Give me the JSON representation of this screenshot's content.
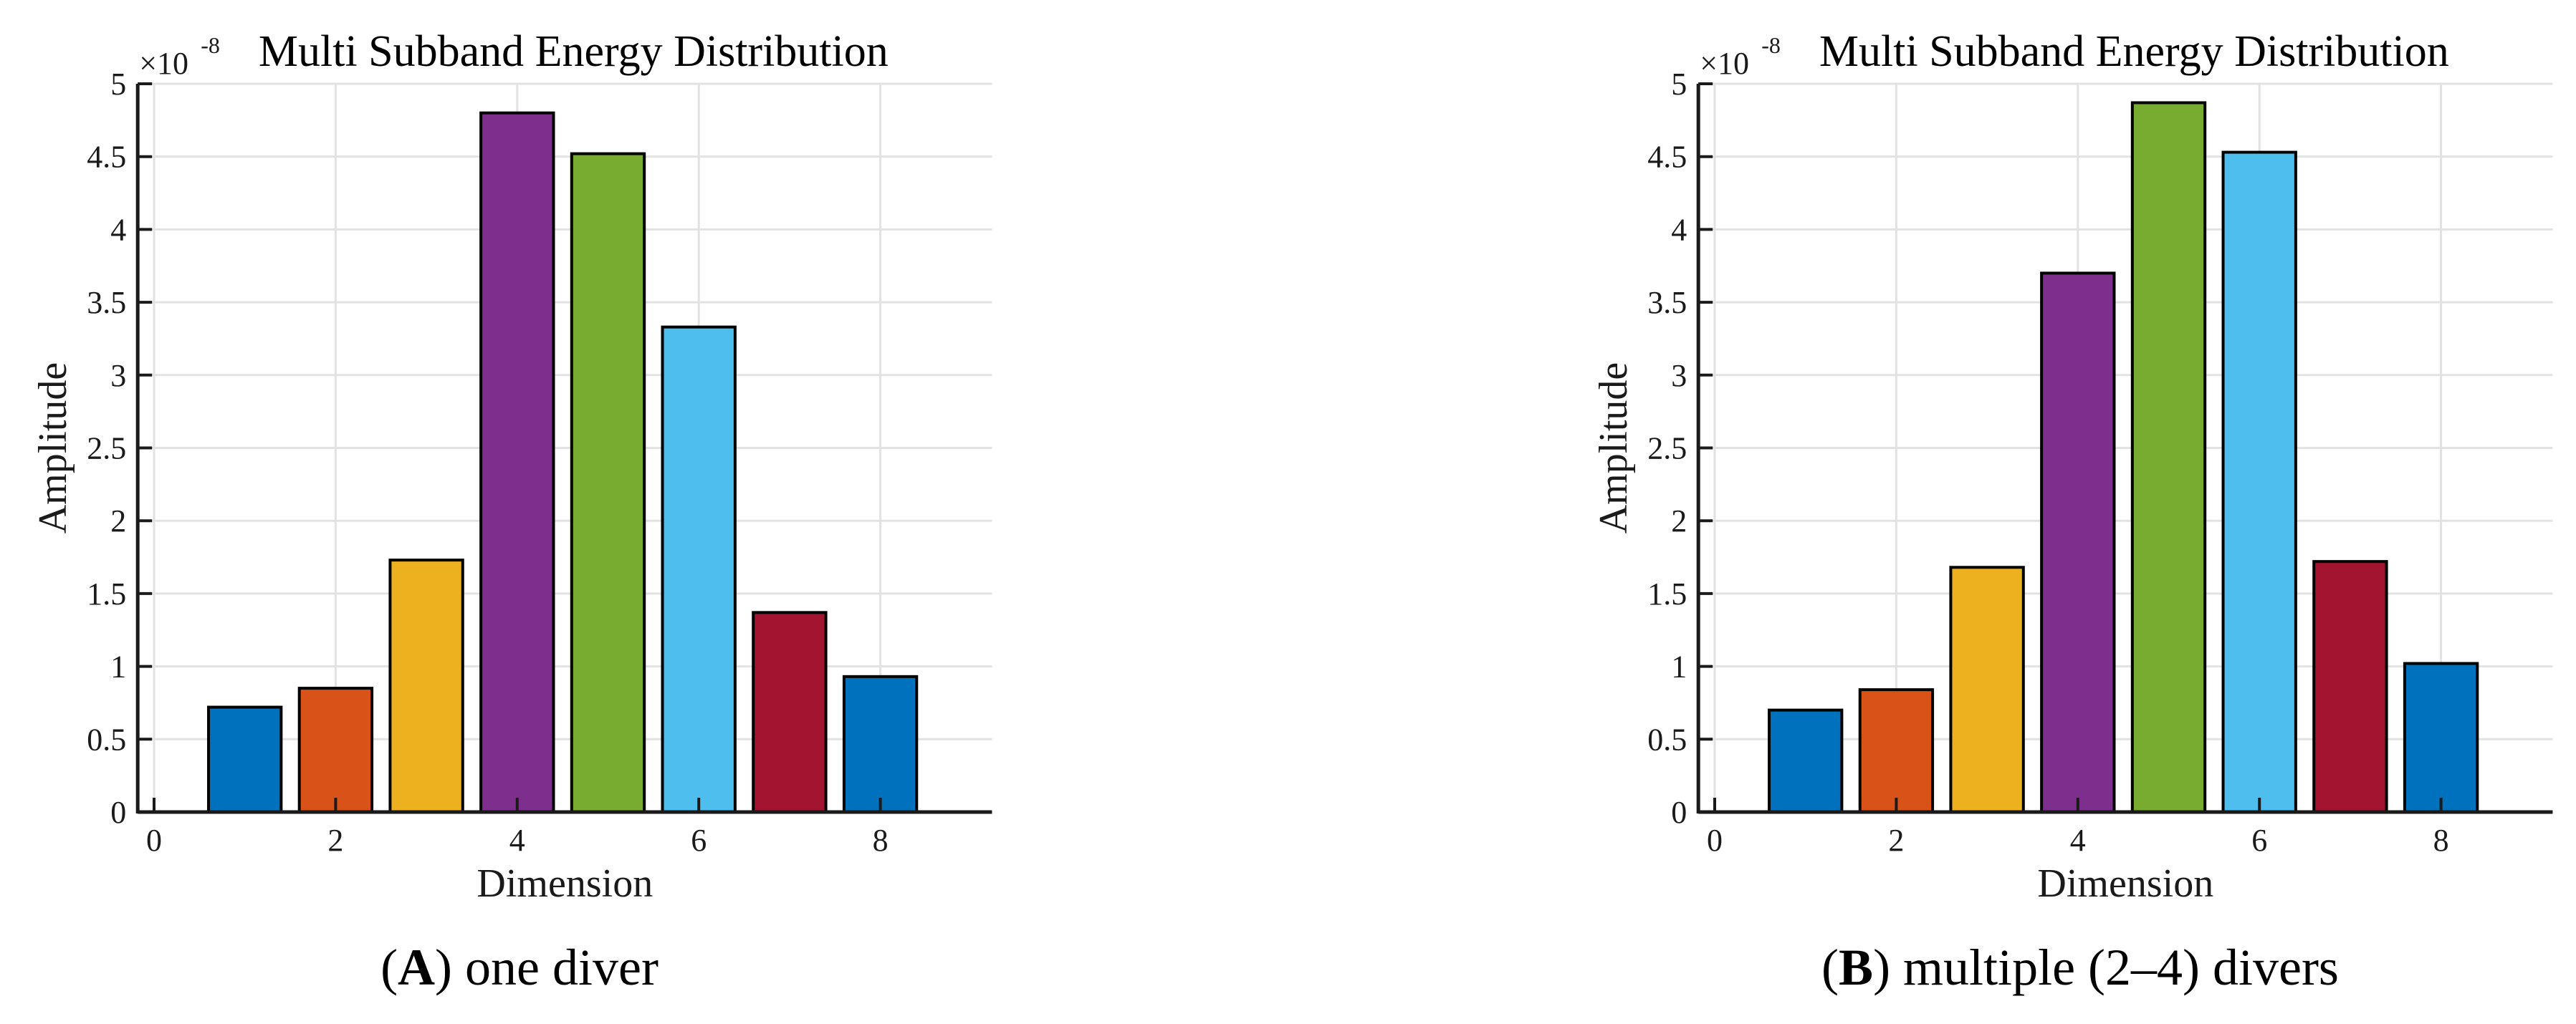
{
  "style": {
    "background": "#FFFFFF",
    "axis_color": "#1A1A1A",
    "grid_color": "#E2E2E2",
    "tick_text_color": "#1A1A1A",
    "title_text_color": "#000000",
    "bar_edge_color": "#000000"
  },
  "chart_data": [
    {
      "type": "bar",
      "panel": "A",
      "title": "Multi Subband Energy Distribution",
      "y_exponent_base": "×10",
      "y_exponent_power": "-8",
      "xlabel": "Dimension",
      "ylabel": "Amplitude",
      "x": [
        1,
        2,
        3,
        4,
        5,
        6,
        7,
        8
      ],
      "values": [
        0.72,
        0.85,
        1.73,
        4.8,
        4.52,
        3.33,
        1.37,
        0.93
      ],
      "value_scale": "1e-8",
      "bar_colors": [
        "#0072BD",
        "#D95319",
        "#EDB120",
        "#7E2F8E",
        "#77AC30",
        "#4DBEEE",
        "#A2142F",
        "#0072BD"
      ],
      "bar_width": 0.8,
      "xticks": [
        0,
        2,
        4,
        6,
        8
      ],
      "yticks": [
        0,
        0.5,
        1,
        1.5,
        2,
        2.5,
        3,
        3.5,
        4,
        4.5,
        5
      ],
      "xlim": [
        -0.18,
        9.23
      ],
      "ylim": [
        0,
        5
      ],
      "grid": true,
      "legend": null,
      "caption": {
        "open": "(",
        "letter": "A",
        "close": ")",
        "text": " one diver"
      }
    },
    {
      "type": "bar",
      "panel": "B",
      "title": "Multi Subband Energy Distribution",
      "y_exponent_base": "×10",
      "y_exponent_power": "-8",
      "xlabel": "Dimension",
      "ylabel": "Amplitude",
      "x": [
        1,
        2,
        3,
        4,
        5,
        6,
        7,
        8
      ],
      "values": [
        0.7,
        0.84,
        1.68,
        3.7,
        4.87,
        4.53,
        1.72,
        1.02
      ],
      "value_scale": "1e-8",
      "bar_colors": [
        "#0072BD",
        "#D95319",
        "#EDB120",
        "#7E2F8E",
        "#77AC30",
        "#4DBEEE",
        "#A2142F",
        "#0072BD"
      ],
      "bar_width": 0.8,
      "xticks": [
        0,
        2,
        4,
        6,
        8
      ],
      "yticks": [
        0,
        0.5,
        1,
        1.5,
        2,
        2.5,
        3,
        3.5,
        4,
        4.5,
        5
      ],
      "xlim": [
        -0.18,
        9.23
      ],
      "ylim": [
        0,
        5
      ],
      "grid": true,
      "legend": null,
      "caption": {
        "open": "(",
        "letter": "B",
        "close": ")",
        "text": " multiple (2–4) divers"
      }
    }
  ]
}
